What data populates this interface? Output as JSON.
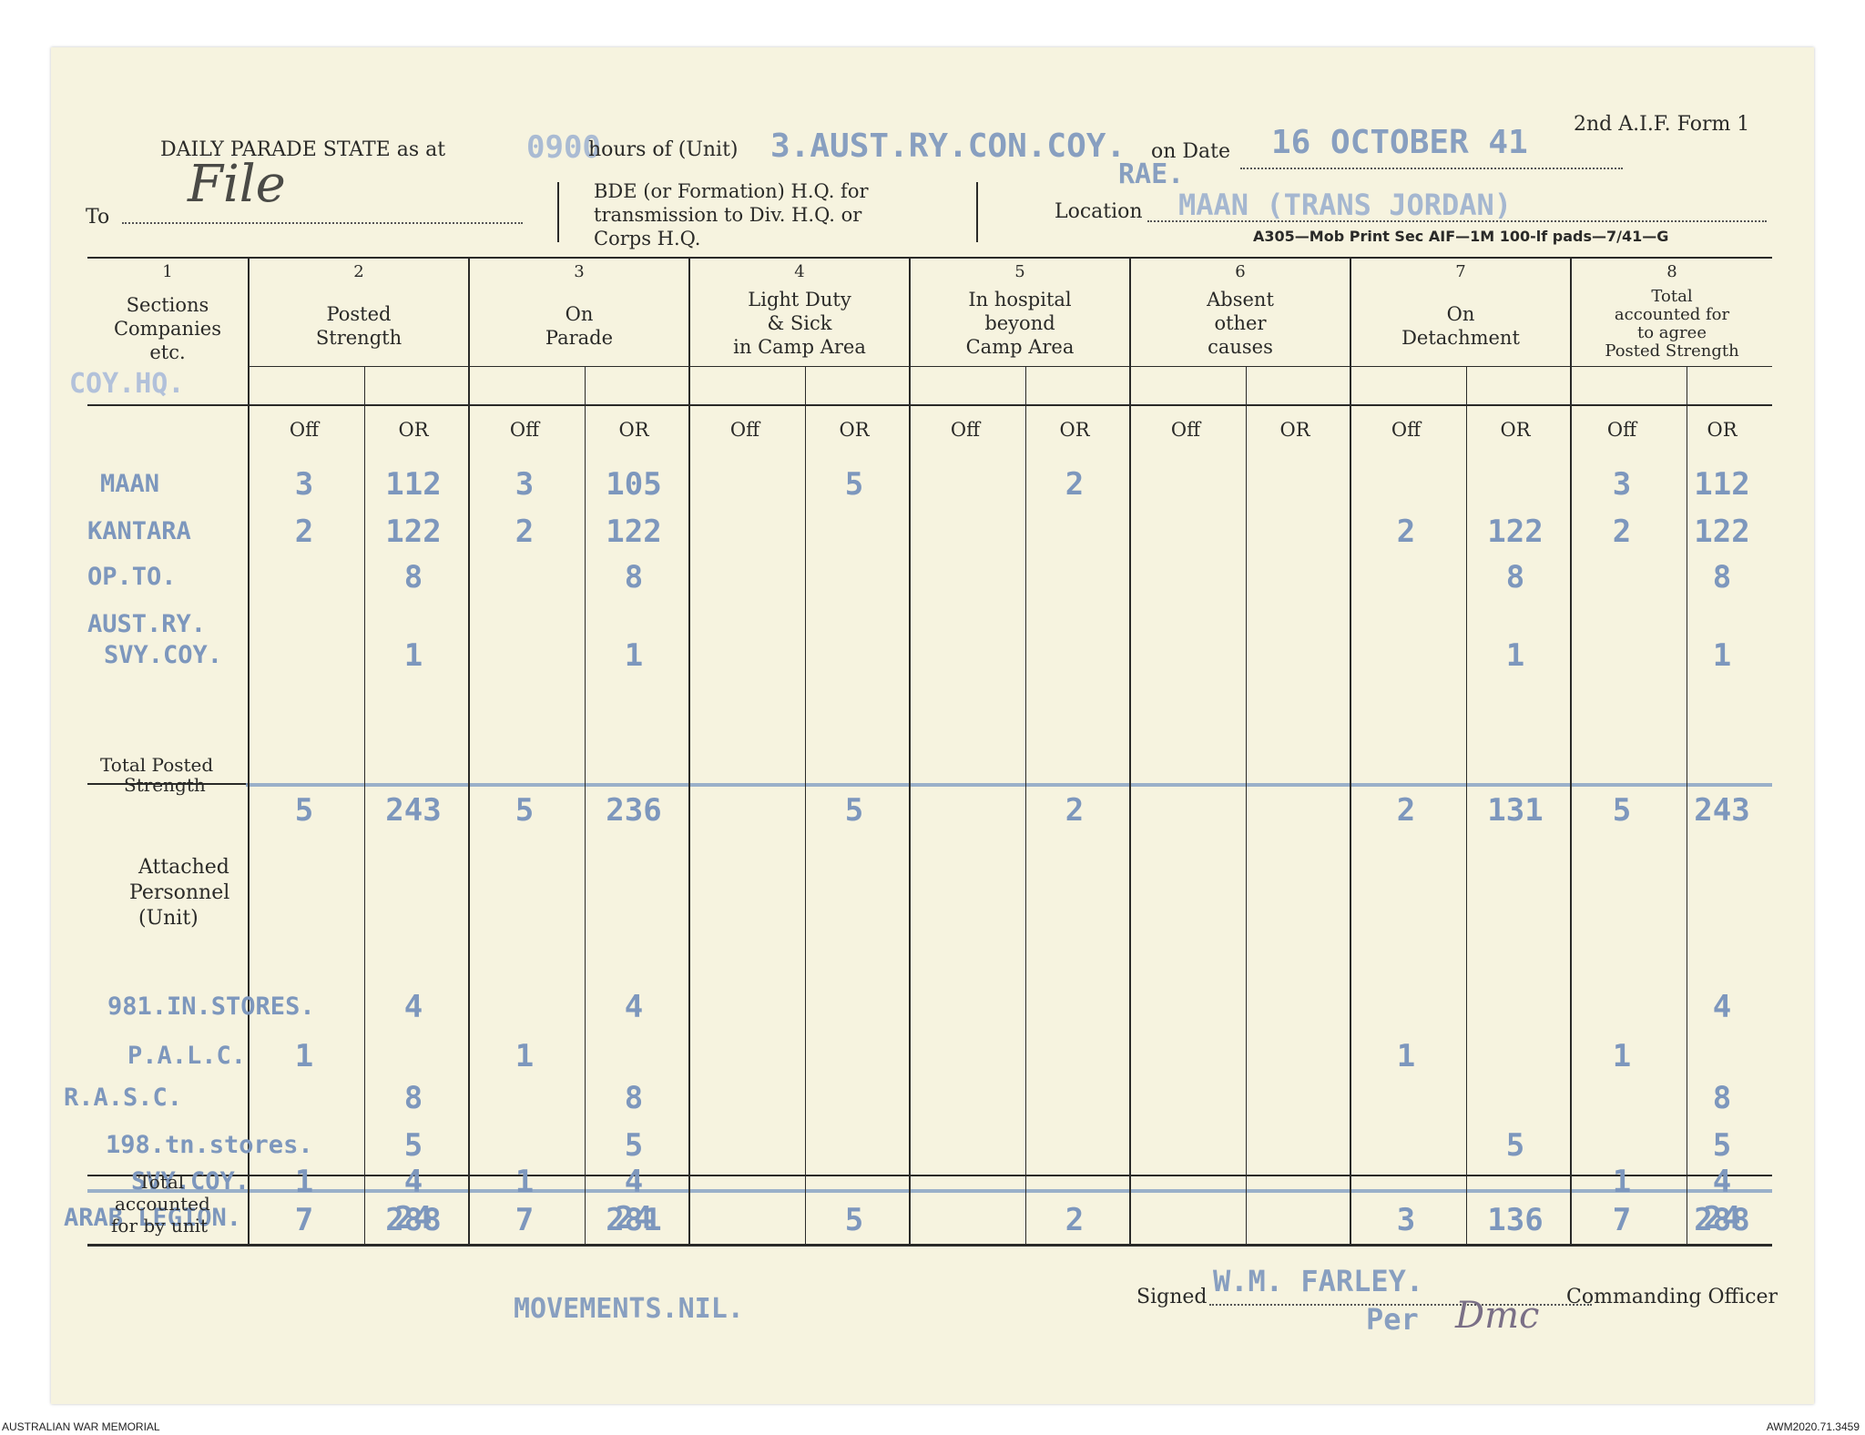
{
  "form_id": "2nd A.I.F. Form 1",
  "header": {
    "title": "DAILY PARADE STATE as at",
    "time": "0900",
    "hours_label": "hours of (Unit)",
    "unit": "3.AUST.RY.CON.COY.",
    "unit_sub": "RAE.",
    "on_date_label": "on Date",
    "date": "16 OCTOBER 41",
    "to_label": "To",
    "to_value": "File",
    "bde_text_1": "BDE (or Formation) H.Q. for",
    "bde_text_2": "transmission to Div. H.Q. or",
    "bde_text_3": "Corps H.Q.",
    "location_label": "Location",
    "location": "MAAN (TRANS JORDAN)",
    "print_note": "A305—Mob Print Sec AIF—1M 100-lf pads—7/41—G"
  },
  "columns": [
    {
      "num": "1",
      "lines": [
        "Sections",
        "Companies",
        "etc."
      ]
    },
    {
      "num": "2",
      "lines": [
        "Posted",
        "Strength"
      ]
    },
    {
      "num": "3",
      "lines": [
        "On",
        "Parade"
      ]
    },
    {
      "num": "4",
      "lines": [
        "Light Duty",
        "& Sick",
        "in Camp Area"
      ]
    },
    {
      "num": "5",
      "lines": [
        "In hospital",
        "beyond",
        "Camp Area"
      ]
    },
    {
      "num": "6",
      "lines": [
        "Absent",
        "other",
        "causes"
      ]
    },
    {
      "num": "7",
      "lines": [
        "On",
        "Detachment"
      ]
    },
    {
      "num": "8",
      "lines": [
        "Total",
        "accounted for",
        "to agree",
        "Posted Strength"
      ]
    }
  ],
  "sub_off": "Off",
  "sub_or": "OR",
  "section_heading": "COY.HQ.",
  "rows": [
    {
      "label": "MAAN",
      "cells": [
        "3",
        "112",
        "3",
        "105",
        "",
        "5",
        "",
        "2",
        "",
        "",
        "",
        "",
        "3",
        "112"
      ]
    },
    {
      "label": "KANTARA",
      "cells": [
        "2",
        "122",
        "2",
        "122",
        "",
        "",
        "",
        "",
        "",
        "",
        "2",
        "122",
        "2",
        "122"
      ]
    },
    {
      "label": "OP.TO.",
      "cells": [
        "",
        "8",
        "",
        "8",
        "",
        "",
        "",
        "",
        "",
        "",
        "",
        "8",
        "",
        "8"
      ]
    },
    {
      "label": "AUST.RY.",
      "cells": [
        "",
        "",
        "",
        "",
        "",
        "",
        "",
        "",
        "",
        "",
        "",
        "",
        "",
        ""
      ]
    },
    {
      "label": "SVY.COY.",
      "cells": [
        "",
        "1",
        "",
        "1",
        "",
        "",
        "",
        "",
        "",
        "",
        "",
        "1",
        "",
        "1"
      ]
    }
  ],
  "total_posted": {
    "label_1": "Total Posted",
    "label_2": "Strength",
    "cells": [
      "5",
      "243",
      "5",
      "236",
      "",
      "5",
      "",
      "2",
      "",
      "",
      "2",
      "131",
      "5",
      "243"
    ]
  },
  "attached": {
    "label_1": "Attached",
    "label_2": "Personnel",
    "label_3": "(Unit)"
  },
  "attached_rows": [
    {
      "label": "981.IN.STORES.",
      "cells": [
        "",
        "4",
        "",
        "4",
        "",
        "",
        "",
        "",
        "",
        "",
        "",
        "",
        "",
        "4"
      ]
    },
    {
      "label": "P.A.L.C.",
      "cells": [
        "1",
        "",
        "1",
        "",
        "",
        "",
        "",
        "",
        "",
        "",
        "1",
        "",
        "1",
        ""
      ]
    },
    {
      "label": "R.A.S.C.",
      "cells": [
        "",
        "8",
        "",
        "8",
        "",
        "",
        "",
        "",
        "",
        "",
        "",
        "",
        "",
        "8"
      ]
    },
    {
      "label": "198.tn.stores.",
      "cells": [
        "",
        "5",
        "",
        "5",
        "",
        "",
        "",
        "",
        "",
        "",
        "",
        "5",
        "",
        "5"
      ]
    },
    {
      "label": "SVY.COY.",
      "cells": [
        "1",
        "4",
        "1",
        "4",
        "",
        "",
        "",
        "",
        "",
        "",
        "",
        "",
        "1",
        "4"
      ]
    },
    {
      "label": "ARAB LEGION.",
      "cells": [
        "",
        "24",
        "",
        "24",
        "",
        "",
        "",
        "",
        "",
        "",
        "",
        "",
        "",
        "24"
      ]
    }
  ],
  "total_unit": {
    "label_1": "Total",
    "label_2": "accounted",
    "label_3": "for by unit",
    "cells": [
      "7",
      "288",
      "7",
      "281",
      "",
      "5",
      "",
      "2",
      "",
      "",
      "3",
      "136",
      "7",
      "288"
    ]
  },
  "movements": "MOVEMENTS.NIL.",
  "signed_label": "Signed",
  "signed_name": "W.M. FARLEY.",
  "per": "Per",
  "per_initials": "Dmc",
  "signed_role": "Commanding Officer",
  "footer_left": "AUSTRALIAN WAR MEMORIAL",
  "footer_right": "AWM2020.71.3459",
  "colors": {
    "paper": "#f6f3df",
    "ink": "#2a2a28",
    "typewriter": "#7d97bd"
  }
}
